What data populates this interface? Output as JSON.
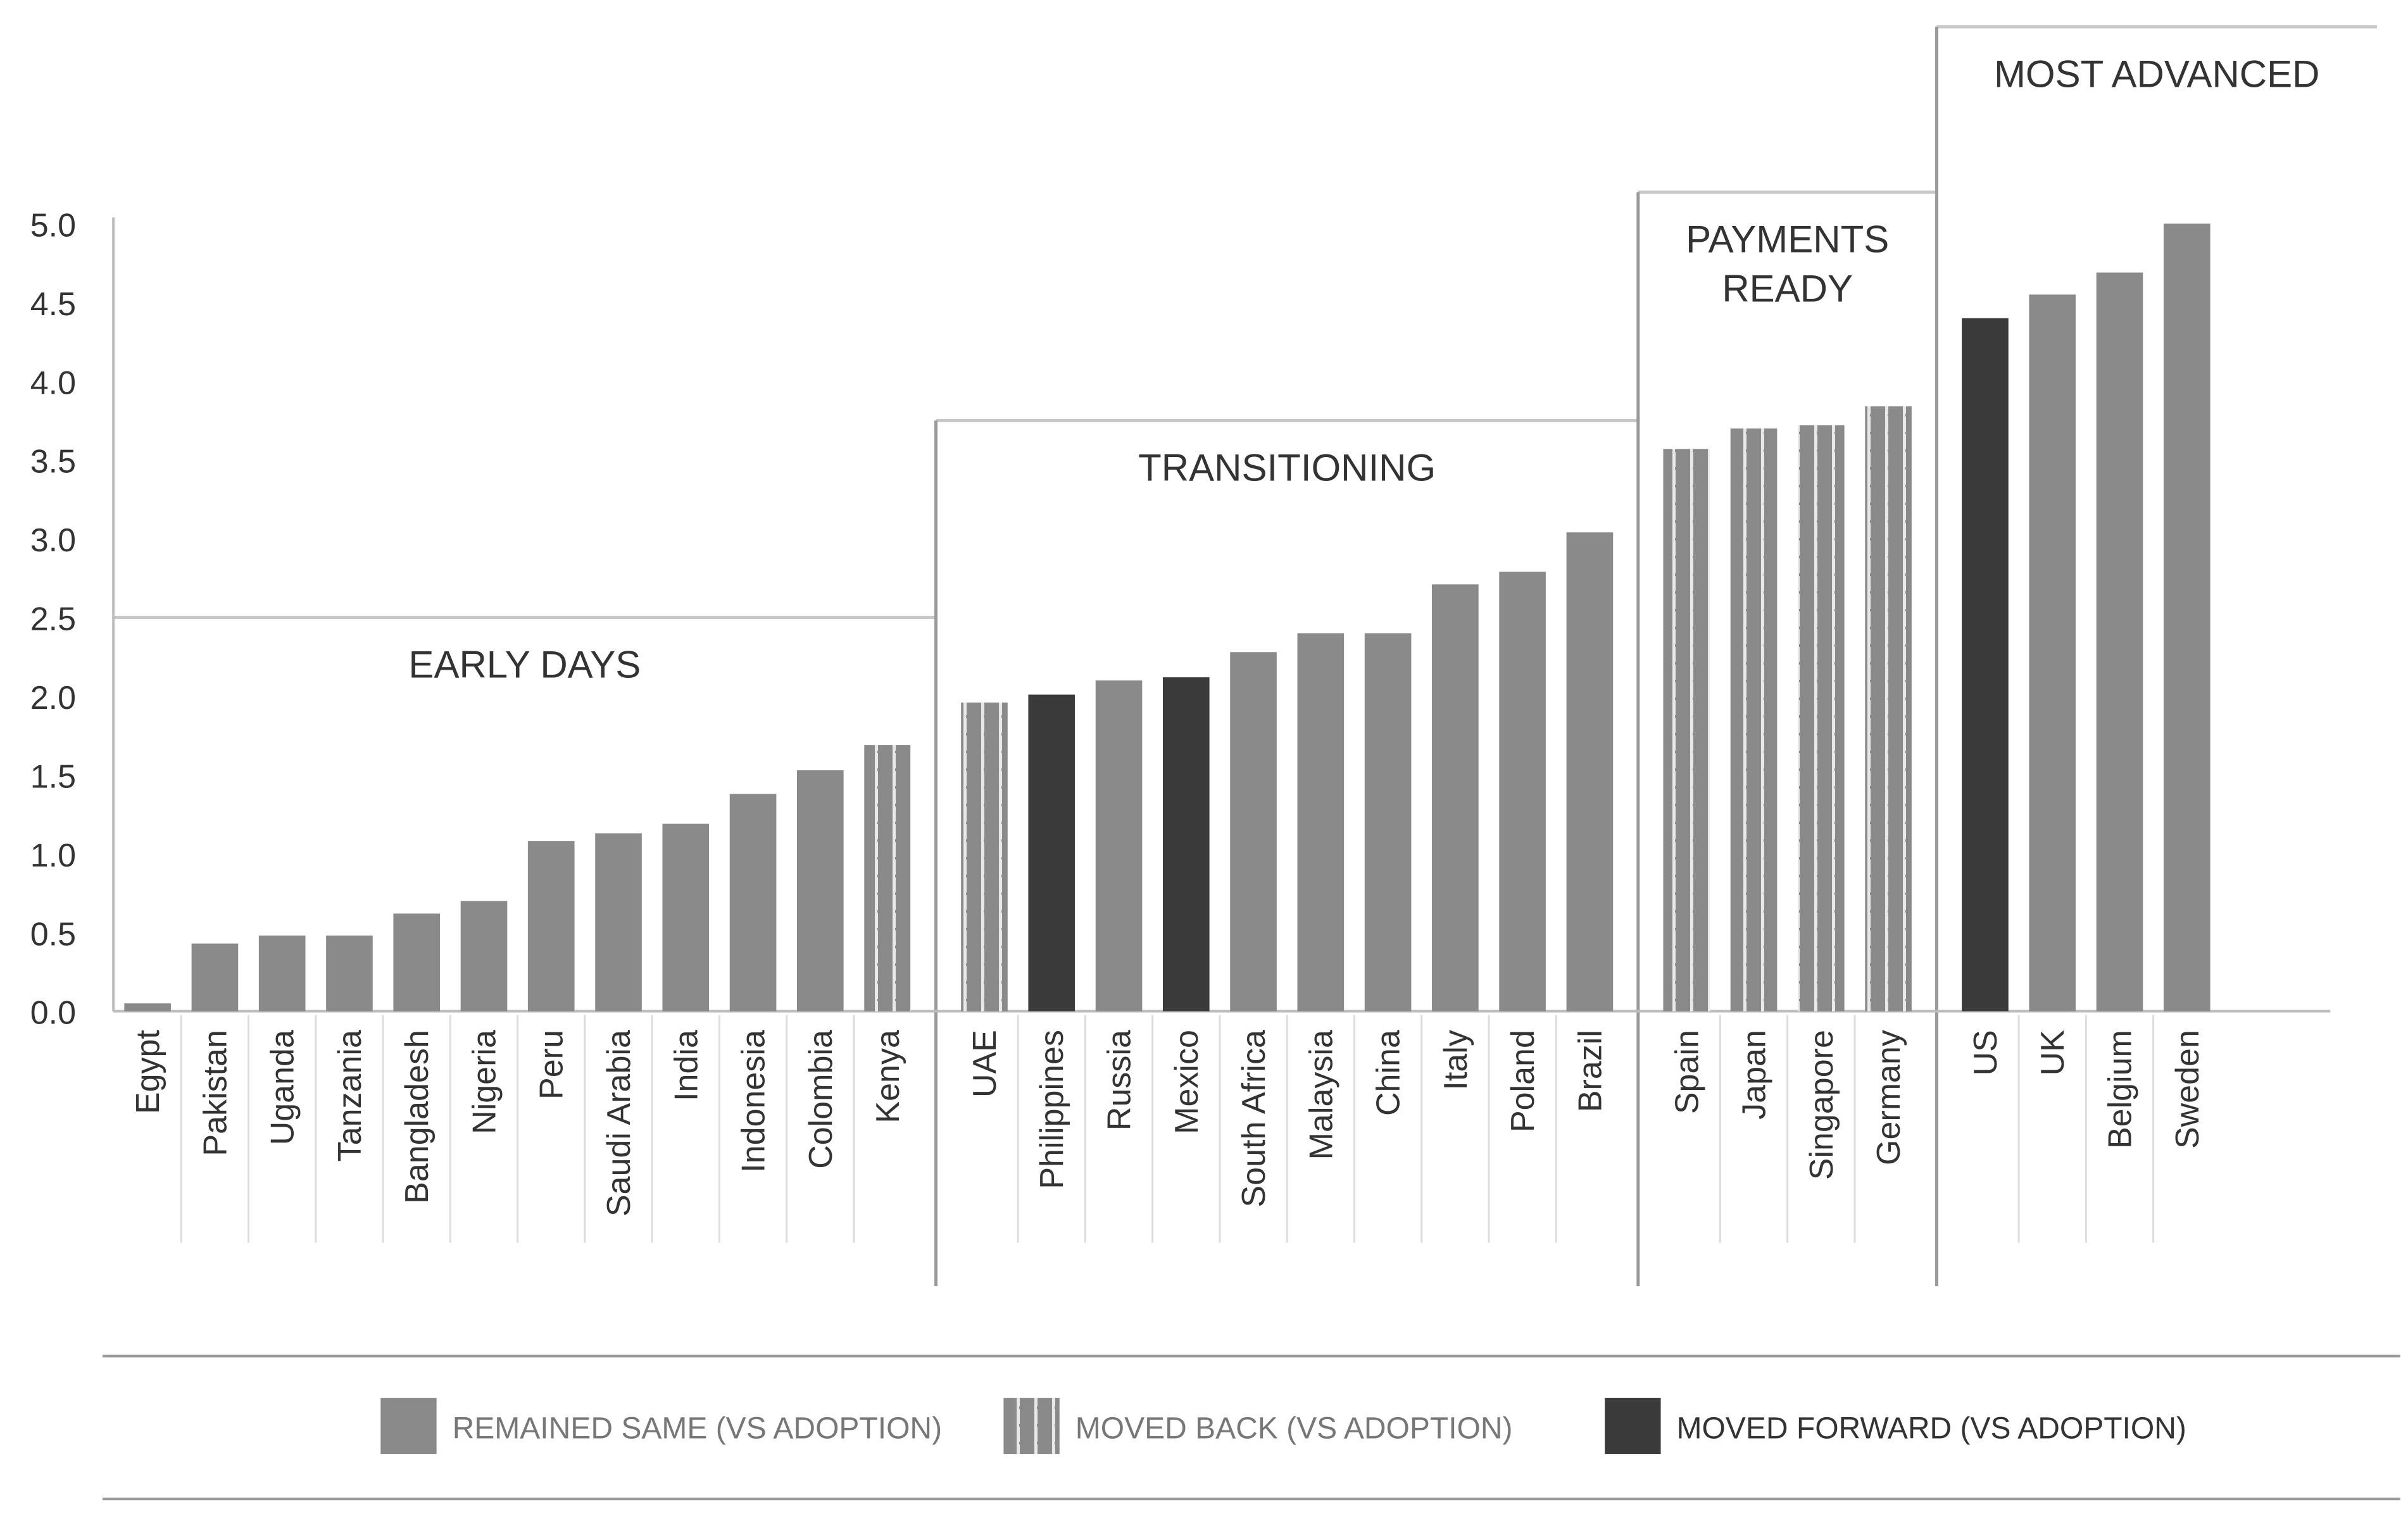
{
  "chart_data": {
    "type": "bar",
    "ylim": [
      0,
      5.0
    ],
    "yticks": [
      "0.0",
      "0.5",
      "1.0",
      "1.5",
      "2.0",
      "2.5",
      "3.0",
      "3.5",
      "4.0",
      "4.5",
      "5.0"
    ],
    "grid": false,
    "legend_placement": "bottom",
    "categories": [
      "Egypt",
      "Pakistan",
      "Uganda",
      "Tanzania",
      "Bangladesh",
      "Nigeria",
      "Peru",
      "Saudi Arabia",
      "India",
      "Indonesia",
      "Colombia",
      "Kenya",
      "UAE",
      "Philippines",
      "Russia",
      "Mexico",
      "South Africa",
      "Malaysia",
      "China",
      "Italy",
      "Poland",
      "Brazil",
      "Spain",
      "Japan",
      "Singapore",
      "Germany",
      "US",
      "UK",
      "Belgium",
      "Sweden"
    ],
    "values": [
      0.05,
      0.43,
      0.48,
      0.48,
      0.62,
      0.7,
      1.08,
      1.13,
      1.19,
      1.38,
      1.53,
      1.69,
      1.96,
      2.01,
      2.1,
      2.12,
      2.28,
      2.4,
      2.4,
      2.71,
      2.79,
      3.04,
      3.57,
      3.7,
      3.72,
      3.84,
      4.4,
      4.55,
      4.69,
      5.0
    ],
    "status": [
      "same",
      "same",
      "same",
      "same",
      "same",
      "same",
      "same",
      "same",
      "same",
      "same",
      "same",
      "back",
      "back",
      "forward",
      "same",
      "forward",
      "same",
      "same",
      "same",
      "same",
      "same",
      "same",
      "back",
      "back",
      "back",
      "back",
      "forward",
      "same",
      "same",
      "same"
    ],
    "groups": [
      {
        "label": "EARLY DAYS",
        "start": 0,
        "end": 11,
        "threshold": 2.5
      },
      {
        "label": "TRANSITIONING",
        "start": 12,
        "end": 21,
        "threshold": 3.75
      },
      {
        "label": "PAYMENTS READY",
        "lines": [
          "PAYMENTS",
          "READY"
        ],
        "start": 22,
        "end": 25,
        "threshold": 5.2
      },
      {
        "label": "MOST ADVANCED",
        "start": 26,
        "end": 29,
        "threshold": 6.25
      }
    ],
    "legend": [
      {
        "key": "same",
        "label": "REMAINED SAME (VS ADOPTION)"
      },
      {
        "key": "back",
        "label": "MOVED BACK (VS ADOPTION)"
      },
      {
        "key": "forward",
        "label": "MOVED FORWARD (VS ADOPTION)"
      }
    ],
    "colors": {
      "same": "#8a8a8a",
      "back": "#8a8a8a",
      "forward": "#3a3a3a",
      "axis": "#bdbdbd",
      "text": "#333333",
      "box": "#c8c8c8"
    }
  }
}
